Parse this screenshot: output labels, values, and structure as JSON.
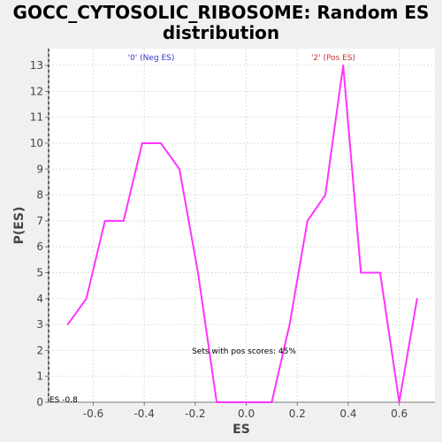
{
  "chart_data": {
    "type": "line",
    "title_line1": "GOCC_CYTOSOLIC_RIBOSOME: Random ES",
    "title_line2": "distribution",
    "xlabel": "ES",
    "ylabel": "P(ES)",
    "xlim": [
      -0.775,
      0.74
    ],
    "ylim": [
      0,
      13.65
    ],
    "xticks": [
      -0.6,
      -0.4,
      -0.2,
      0.0,
      0.2,
      0.4,
      0.6
    ],
    "xtick_labels": [
      "-0.6",
      "-0.4",
      "-0.2",
      "0.0",
      "0.2",
      "0.4",
      "0.6"
    ],
    "yticks": [
      0,
      1,
      2,
      3,
      4,
      5,
      6,
      7,
      8,
      9,
      10,
      11,
      12,
      13
    ],
    "yticks_labels": [
      "0",
      "1",
      "2",
      "3",
      "4",
      "5",
      "6",
      "7",
      "8",
      "9",
      "10",
      "11",
      "12",
      "13"
    ],
    "grid": true,
    "series": [
      {
        "color": "#ff33ff",
        "x": [
          -0.7,
          -0.627,
          -0.554,
          -0.481,
          -0.408,
          -0.335,
          -0.262,
          -0.189,
          -0.116,
          -0.043,
          0.03,
          0.1,
          0.17,
          0.24,
          0.31,
          0.38,
          0.45,
          0.525,
          0.6,
          0.67
        ],
        "y": [
          3,
          4,
          7,
          7,
          10,
          10,
          9,
          5,
          0,
          0,
          0,
          0,
          3,
          7,
          8,
          13,
          5,
          5,
          0,
          4
        ]
      }
    ],
    "annotations": {
      "neg_label": "'0' (Neg ES)",
      "neg_color": "#3333cc",
      "pos_label": "'2' (Pos ES)",
      "pos_color": "#cc3333",
      "pos_scores": "Sets with pos scores: 45%",
      "es_marker": "ES -0.8"
    }
  }
}
